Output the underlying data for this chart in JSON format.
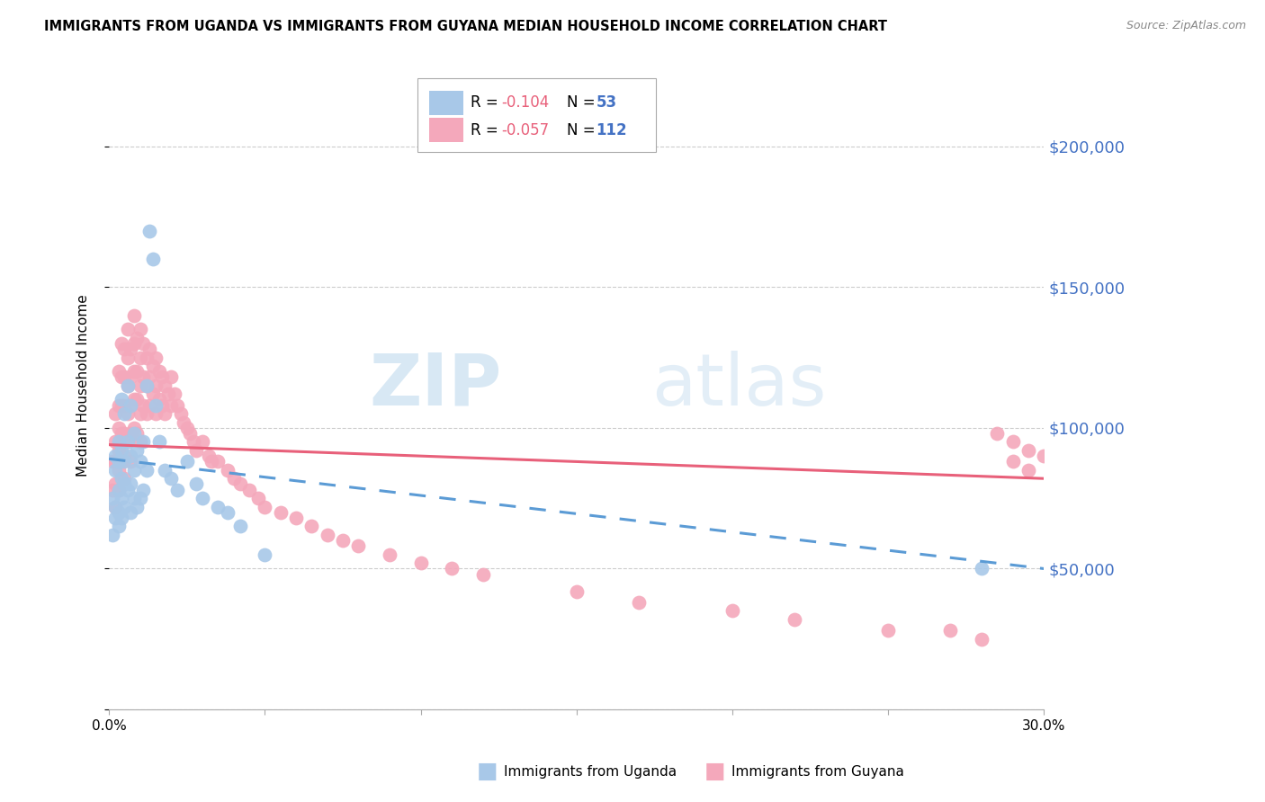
{
  "title": "IMMIGRANTS FROM UGANDA VS IMMIGRANTS FROM GUYANA MEDIAN HOUSEHOLD INCOME CORRELATION CHART",
  "source": "Source: ZipAtlas.com",
  "ylabel": "Median Household Income",
  "xlim": [
    0.0,
    0.3
  ],
  "ylim": [
    0,
    230000
  ],
  "yticks": [
    0,
    50000,
    100000,
    150000,
    200000
  ],
  "ytick_labels": [
    "",
    "$50,000",
    "$100,000",
    "$150,000",
    "$200,000"
  ],
  "xticks": [
    0.0,
    0.05,
    0.1,
    0.15,
    0.2,
    0.25,
    0.3
  ],
  "xtick_labels": [
    "0.0%",
    "",
    "",
    "",
    "",
    "",
    "30.0%"
  ],
  "uganda_color": "#A8C8E8",
  "guyana_color": "#F4A8BB",
  "trend_uganda_color": "#5B9BD5",
  "trend_guyana_color": "#E8607A",
  "watermark_zip": "ZIP",
  "watermark_atlas": "atlas",
  "legend_R_uganda": "-0.104",
  "legend_N_uganda": "53",
  "legend_R_guyana": "-0.057",
  "legend_N_guyana": "112",
  "uganda_x": [
    0.001,
    0.001,
    0.002,
    0.002,
    0.002,
    0.002,
    0.003,
    0.003,
    0.003,
    0.003,
    0.003,
    0.004,
    0.004,
    0.004,
    0.004,
    0.004,
    0.005,
    0.005,
    0.005,
    0.005,
    0.006,
    0.006,
    0.006,
    0.007,
    0.007,
    0.007,
    0.007,
    0.008,
    0.008,
    0.008,
    0.009,
    0.009,
    0.01,
    0.01,
    0.011,
    0.011,
    0.012,
    0.012,
    0.013,
    0.014,
    0.015,
    0.016,
    0.018,
    0.02,
    0.022,
    0.025,
    0.028,
    0.03,
    0.035,
    0.038,
    0.042,
    0.05,
    0.28
  ],
  "uganda_y": [
    75000,
    62000,
    85000,
    90000,
    72000,
    68000,
    95000,
    78000,
    88000,
    70000,
    65000,
    110000,
    92000,
    82000,
    75000,
    68000,
    105000,
    88000,
    80000,
    72000,
    115000,
    95000,
    78000,
    108000,
    90000,
    80000,
    70000,
    98000,
    85000,
    75000,
    92000,
    72000,
    88000,
    75000,
    95000,
    78000,
    115000,
    85000,
    170000,
    160000,
    108000,
    95000,
    85000,
    82000,
    78000,
    88000,
    80000,
    75000,
    72000,
    70000,
    65000,
    55000,
    50000
  ],
  "guyana_x": [
    0.001,
    0.001,
    0.002,
    0.002,
    0.002,
    0.002,
    0.002,
    0.003,
    0.003,
    0.003,
    0.003,
    0.003,
    0.003,
    0.004,
    0.004,
    0.004,
    0.004,
    0.004,
    0.005,
    0.005,
    0.005,
    0.005,
    0.005,
    0.005,
    0.006,
    0.006,
    0.006,
    0.006,
    0.006,
    0.007,
    0.007,
    0.007,
    0.007,
    0.007,
    0.008,
    0.008,
    0.008,
    0.008,
    0.008,
    0.009,
    0.009,
    0.009,
    0.009,
    0.01,
    0.01,
    0.01,
    0.01,
    0.01,
    0.011,
    0.011,
    0.011,
    0.012,
    0.012,
    0.012,
    0.013,
    0.013,
    0.013,
    0.014,
    0.014,
    0.015,
    0.015,
    0.015,
    0.016,
    0.016,
    0.017,
    0.017,
    0.018,
    0.018,
    0.019,
    0.02,
    0.02,
    0.021,
    0.022,
    0.023,
    0.024,
    0.025,
    0.026,
    0.027,
    0.028,
    0.03,
    0.032,
    0.033,
    0.035,
    0.038,
    0.04,
    0.042,
    0.045,
    0.048,
    0.05,
    0.055,
    0.06,
    0.065,
    0.07,
    0.075,
    0.08,
    0.09,
    0.1,
    0.11,
    0.12,
    0.15,
    0.17,
    0.2,
    0.22,
    0.25,
    0.27,
    0.28,
    0.285,
    0.29,
    0.295,
    0.3,
    0.29,
    0.295
  ],
  "guyana_y": [
    88000,
    78000,
    105000,
    95000,
    88000,
    80000,
    72000,
    120000,
    108000,
    100000,
    92000,
    85000,
    78000,
    130000,
    118000,
    108000,
    98000,
    88000,
    128000,
    118000,
    108000,
    98000,
    90000,
    82000,
    135000,
    125000,
    115000,
    105000,
    95000,
    128000,
    118000,
    108000,
    98000,
    88000,
    140000,
    130000,
    120000,
    110000,
    100000,
    132000,
    120000,
    110000,
    98000,
    135000,
    125000,
    115000,
    105000,
    95000,
    130000,
    118000,
    108000,
    125000,
    115000,
    105000,
    128000,
    118000,
    108000,
    122000,
    112000,
    125000,
    115000,
    105000,
    120000,
    110000,
    118000,
    108000,
    115000,
    105000,
    112000,
    118000,
    108000,
    112000,
    108000,
    105000,
    102000,
    100000,
    98000,
    95000,
    92000,
    95000,
    90000,
    88000,
    88000,
    85000,
    82000,
    80000,
    78000,
    75000,
    72000,
    70000,
    68000,
    65000,
    62000,
    60000,
    58000,
    55000,
    52000,
    50000,
    48000,
    42000,
    38000,
    35000,
    32000,
    28000,
    28000,
    25000,
    98000,
    95000,
    92000,
    90000,
    88000,
    85000
  ]
}
